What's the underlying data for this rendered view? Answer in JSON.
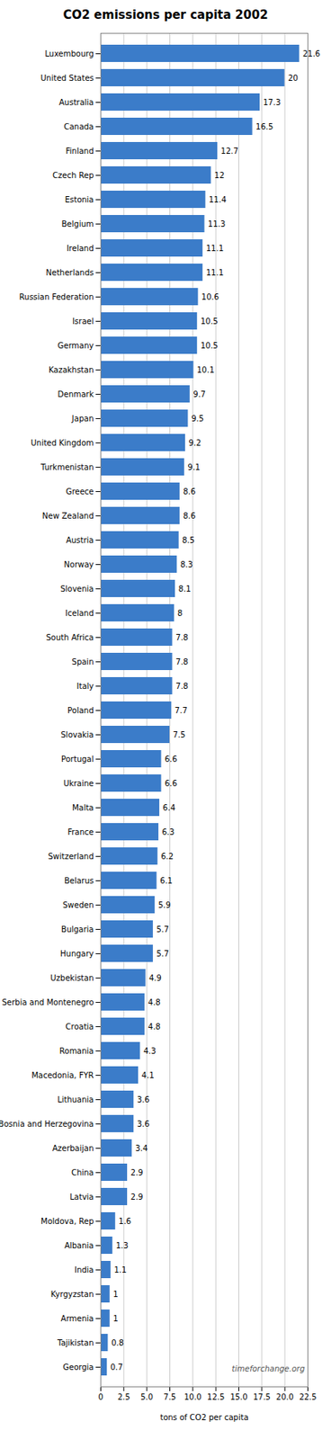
{
  "chart_data": {
    "type": "bar",
    "orientation": "horizontal",
    "title": "CO2 emissions per capita 2002",
    "xlabel": "tons of CO2 per capita",
    "annotation": "timeforchange.org",
    "color": "#3b7cc9",
    "categories": [
      "Luxembourg",
      "United States",
      "Australia",
      "Canada",
      "Finland",
      "Czech Rep",
      "Estonia",
      "Belgium",
      "Ireland",
      "Netherlands",
      "Russian Federation",
      "Israel",
      "Germany",
      "Kazakhstan",
      "Denmark",
      "Japan",
      "United Kingdom",
      "Turkmenistan",
      "Greece",
      "New Zealand",
      "Austria",
      "Norway",
      "Slovenia",
      "Iceland",
      "South Africa",
      "Spain",
      "Italy",
      "Poland",
      "Slovakia",
      "Portugal",
      "Ukraine",
      "Malta",
      "France",
      "Switzerland",
      "Belarus",
      "Sweden",
      "Bulgaria",
      "Hungary",
      "Uzbekistan",
      "Serbia and Montenegro",
      "Croatia",
      "Romania",
      "Macedonia, FYR",
      "Lithuania",
      "Bosnia and Herzegovina",
      "Azerbaijan",
      "China",
      "Latvia",
      "Moldova, Rep",
      "Albania",
      "India",
      "Kyrgyzstan",
      "Armenia",
      "Tajikistan",
      "Georgia"
    ],
    "values": [
      21.6,
      20.0,
      17.3,
      16.5,
      12.7,
      12.0,
      11.4,
      11.3,
      11.1,
      11.1,
      10.6,
      10.5,
      10.5,
      10.1,
      9.7,
      9.5,
      9.2,
      9.1,
      8.6,
      8.6,
      8.5,
      8.3,
      8.1,
      8.0,
      7.8,
      7.8,
      7.8,
      7.7,
      7.5,
      6.6,
      6.6,
      6.4,
      6.3,
      6.2,
      6.1,
      5.9,
      5.7,
      5.7,
      4.9,
      4.8,
      4.8,
      4.3,
      4.1,
      3.6,
      3.6,
      3.4,
      2.9,
      2.9,
      1.6,
      1.3,
      1.1,
      1.0,
      1.0,
      0.8,
      0.7
    ],
    "xlim": [
      0,
      22.5
    ],
    "xticks": [
      0,
      2.5,
      {
        "value": 5,
        "label": "5.0"
      },
      7.5,
      {
        "value": 10,
        "label": "10.0"
      },
      12.5,
      {
        "value": 15,
        "label": "15.0"
      },
      17.5,
      {
        "value": 20,
        "label": "20.0"
      },
      22.5
    ],
    "grid": true,
    "data_labels": true
  }
}
